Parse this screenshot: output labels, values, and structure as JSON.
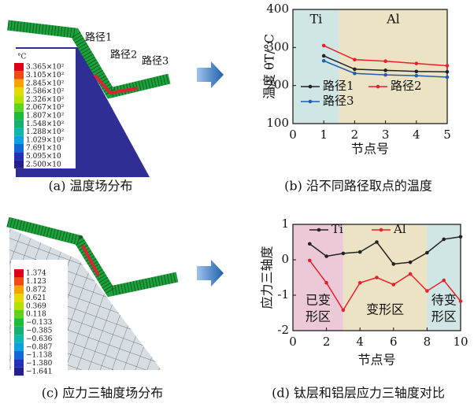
{
  "figure_a": {
    "colorbar_unit": "°C",
    "colorbar_labels": [
      "3.365×10²",
      "3.105×10²",
      "2.845×10²",
      "2.586×10²",
      "2.326×10²",
      "2.067×10²",
      "1.807×10²",
      "1.548×10²",
      "1.288×10²",
      "1.029×10²",
      "7.691×10",
      "5.095×10",
      "2.500×10"
    ],
    "path_labels": [
      "路径1",
      "路径2",
      "路径3"
    ],
    "caption": "(a) 温度场分布"
  },
  "figure_c": {
    "colorbar_labels": [
      "1.374",
      "1.123",
      "0.872",
      "0.621",
      "0.369",
      "0.118",
      "−0.133",
      "−0.385",
      "−0.636",
      "−0.887",
      "−1.138",
      "−1.380",
      "−1.641"
    ],
    "caption": "(c) 应力三轴度场分布"
  },
  "chart_data": [
    {
      "type": "line",
      "caption": "(b) 沿不同路径取点的温度",
      "xlabel": "节点号",
      "ylabel": "温度 θT/°C",
      "x": [
        1,
        2,
        3,
        4,
        5
      ],
      "series": [
        {
          "name": "路径1",
          "color": "#222222",
          "values": [
            278,
            243,
            240,
            237,
            236
          ]
        },
        {
          "name": "路径2",
          "color": "#e8202a",
          "values": [
            305,
            268,
            264,
            258,
            252
          ]
        },
        {
          "name": "路径3",
          "color": "#1f5fae",
          "values": [
            265,
            232,
            228,
            226,
            222
          ]
        }
      ],
      "regions": [
        {
          "label": [
            "Ti"
          ],
          "x": [
            0,
            1.5
          ],
          "color": "#cfe6e4"
        },
        {
          "label": [
            "Al"
          ],
          "x": [
            1.5,
            5
          ],
          "color": "#ece3c4"
        }
      ],
      "xlim": [
        0,
        5
      ],
      "ylim": [
        100,
        400
      ],
      "xticks": [
        0,
        1,
        2,
        3,
        4,
        5
      ],
      "yticks": [
        100,
        200,
        300,
        400
      ]
    },
    {
      "type": "line",
      "caption": "(d) 钛层和铝层应力三轴度对比",
      "xlabel": "节点号",
      "ylabel": "应力三轴度",
      "x": [
        1,
        2,
        3,
        4,
        5,
        6,
        7,
        8,
        9,
        10
      ],
      "series": [
        {
          "name": "Ti",
          "color": "#222222",
          "values": [
            0.45,
            0.1,
            0.18,
            0.22,
            0.5,
            -0.12,
            -0.07,
            0.2,
            0.58,
            0.65
          ]
        },
        {
          "name": "Al",
          "color": "#e8202a",
          "values": [
            -0.02,
            -0.65,
            -1.42,
            -0.65,
            -0.5,
            -0.7,
            -0.4,
            -0.88,
            -0.58,
            -1.17
          ]
        }
      ],
      "regions": [
        {
          "label": [
            "已变",
            "形区"
          ],
          "x": [
            0,
            3
          ],
          "color": "#ecc9d8"
        },
        {
          "label": [
            "变形区"
          ],
          "x": [
            3,
            8
          ],
          "color": "#ece3c4"
        },
        {
          "label": [
            "待变",
            "形区"
          ],
          "x": [
            8,
            10
          ],
          "color": "#cfe6e4"
        }
      ],
      "xlim": [
        0,
        10
      ],
      "ylim": [
        -2,
        1
      ],
      "xticks": [
        0,
        2,
        4,
        6,
        8,
        10
      ],
      "yticks": [
        -2,
        -1,
        0,
        1
      ]
    }
  ]
}
